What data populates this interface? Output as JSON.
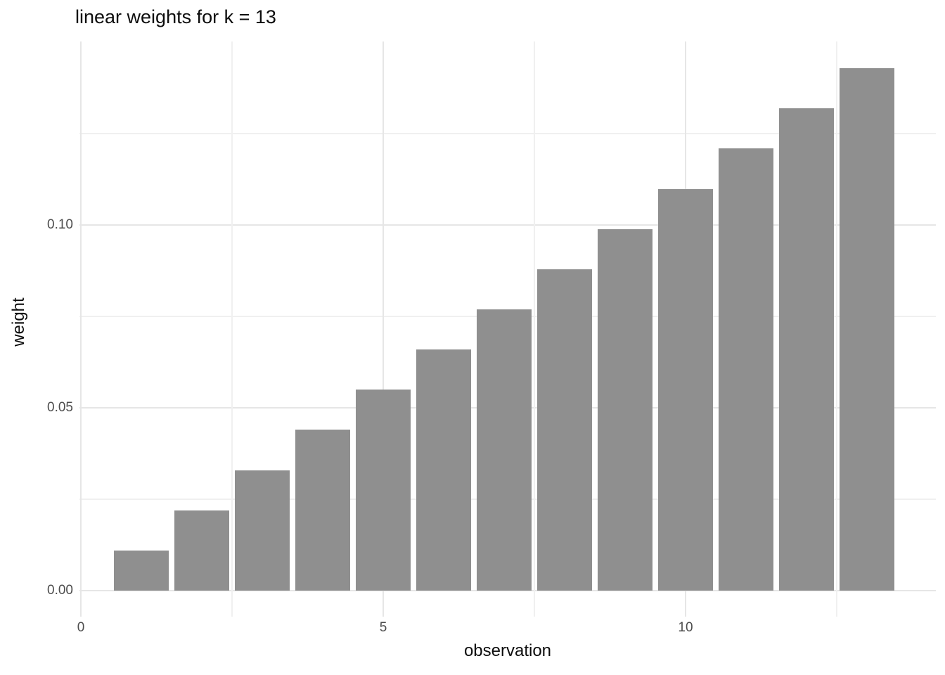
{
  "chart_data": {
    "type": "bar",
    "title": "linear weights for k = 13",
    "xlabel": "observation",
    "ylabel": "weight",
    "k": 13,
    "categories": [
      1,
      2,
      3,
      4,
      5,
      6,
      7,
      8,
      9,
      10,
      11,
      12,
      13
    ],
    "values": [
      0.010989,
      0.021978,
      0.032967,
      0.043956,
      0.054945,
      0.065934,
      0.076923,
      0.087912,
      0.098901,
      0.10989,
      0.120879,
      0.131868,
      0.142857
    ],
    "x_ticks": [
      {
        "value": 0,
        "label": "0"
      },
      {
        "value": 5,
        "label": "5"
      },
      {
        "value": 10,
        "label": "10"
      }
    ],
    "y_ticks": [
      {
        "value": 0.0,
        "label": "0.00"
      },
      {
        "value": 0.05,
        "label": "0.05"
      },
      {
        "value": 0.1,
        "label": "0.10"
      }
    ],
    "x_minor_gridlines": [
      2.5,
      7.5,
      12.5
    ],
    "y_minor_gridlines": [
      0.025,
      0.075,
      0.125
    ],
    "xlim": [
      -0.02,
      14.14
    ],
    "ylim": [
      0,
      0.15
    ],
    "bar_width": 0.9,
    "grid": "major-and-minor",
    "legend": "none",
    "colors": {
      "bar_fill": "#8F8F8F",
      "grid_major": "#E6E6E6",
      "grid_minor": "#F0F0F0",
      "tick_label": "#4D4D4D",
      "axis_title": "#0D0D0D",
      "background": "#FFFFFF"
    }
  }
}
